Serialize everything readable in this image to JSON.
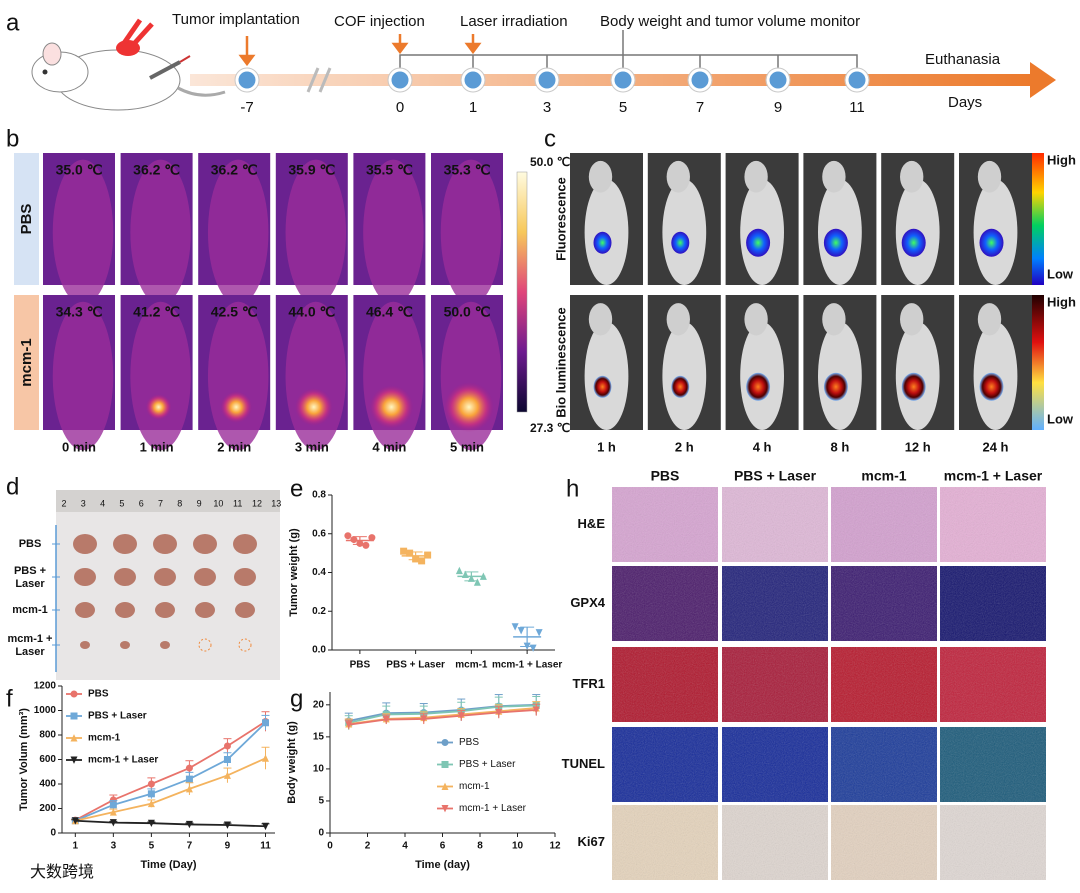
{
  "panel_a": {
    "label": "a",
    "events": [
      "Tumor implantation",
      "COF injection",
      "Laser irradiation",
      "Body weight and tumor volume monitor"
    ],
    "end": "Euthanasia",
    "axis": "Days",
    "days": [
      "-7",
      "0",
      "1",
      "3",
      "5",
      "7",
      "9",
      "11"
    ]
  },
  "panel_b": {
    "label": "b",
    "groups": [
      "PBS",
      "mcm-1"
    ],
    "temps": [
      [
        "35.0 ℃",
        "36.2 ℃",
        "36.2 ℃",
        "35.9 ℃",
        "35.5 ℃",
        "35.3 ℃"
      ],
      [
        "34.3 ℃",
        "41.2 ℃",
        "42.5 ℃",
        "44.0 ℃",
        "46.4 ℃",
        "50.0 ℃"
      ]
    ],
    "times": [
      "0 min",
      "1 min",
      "2 min",
      "3 min",
      "4 min",
      "5 min"
    ],
    "scale_max": "50.0 ℃",
    "scale_min": "27.3 ℃"
  },
  "panel_c": {
    "label": "c",
    "rows": [
      "Fluorescence",
      "Bio luminescence"
    ],
    "times": [
      "1 h",
      "2 h",
      "4 h",
      "8 h",
      "12 h",
      "24 h"
    ],
    "high": "High",
    "low": "Low"
  },
  "panel_d": {
    "label": "d",
    "rows": [
      "PBS",
      "PBS + Laser",
      "mcm-1",
      "mcm-1 + Laser"
    ],
    "ruler": [
      "2",
      "3",
      "4",
      "5",
      "6",
      "7",
      "8",
      "9",
      "10",
      "11",
      "12",
      "13"
    ]
  },
  "panel_h": {
    "label": "h",
    "columns": [
      "PBS",
      "PBS + Laser",
      "mcm-1",
      "mcm-1 + Laser"
    ],
    "rows": [
      "H&E",
      "GPX4",
      "TFR1",
      "TUNEL",
      "Ki67"
    ]
  },
  "watermark": "大数跨境",
  "chart_data": [
    {
      "type": "dot",
      "panel_label": "e",
      "ylabel": "Tumor weight (g)",
      "categories": [
        "PBS",
        "PBS + Laser",
        "mcm-1",
        "mcm-1 + Laser"
      ],
      "colors": [
        "#e8736b",
        "#f4b35e",
        "#7fc6b4",
        "#6ea8d8"
      ],
      "markers": [
        "circle",
        "square",
        "triangle",
        "triangle-down"
      ],
      "points": [
        [
          0.59,
          0.57,
          0.55,
          0.54,
          0.58
        ],
        [
          0.51,
          0.5,
          0.47,
          0.46,
          0.49
        ],
        [
          0.41,
          0.39,
          0.37,
          0.35,
          0.38
        ],
        [
          0.12,
          0.1,
          0.02,
          0.01,
          0.09
        ]
      ],
      "values": [
        0.565,
        0.486,
        0.38,
        0.068
      ],
      "errors": [
        0.02,
        0.02,
        0.023,
        0.05
      ],
      "ylim": [
        0,
        0.8
      ],
      "yticks": [
        {
          "value": 0,
          "label": "0.0"
        },
        0.2,
        0.4,
        0.6,
        0.8
      ]
    },
    {
      "type": "line",
      "panel_label": "f",
      "xlabel": "Time (Day)",
      "ylabel": "Tumor Volum (mm³)",
      "x": [
        1,
        3,
        5,
        7,
        9,
        11
      ],
      "xlim": [
        0.3,
        11.5
      ],
      "xticks": [
        1,
        3,
        5,
        7,
        9,
        11
      ],
      "ylim": [
        0,
        1200
      ],
      "yticks": [
        0,
        200,
        400,
        600,
        800,
        1000,
        1200
      ],
      "legend": "upper left",
      "series": [
        {
          "name": "PBS",
          "color": "#e8736b",
          "marker": "circle",
          "values": [
            105,
            270,
            400,
            530,
            710,
            910
          ],
          "errors": [
            15,
            40,
            50,
            60,
            60,
            80
          ]
        },
        {
          "name": "PBS + Laser",
          "color": "#6ea8d8",
          "marker": "square",
          "values": [
            100,
            230,
            320,
            440,
            600,
            900
          ],
          "errors": [
            12,
            35,
            40,
            55,
            55,
            60
          ]
        },
        {
          "name": "mcm-1",
          "color": "#f4b35e",
          "marker": "triangle",
          "values": [
            100,
            170,
            240,
            360,
            470,
            610
          ],
          "errors": [
            10,
            25,
            30,
            50,
            60,
            90
          ]
        },
        {
          "name": "mcm-1 + Laser",
          "color": "#222222",
          "marker": "triangle-down",
          "values": [
            100,
            85,
            80,
            70,
            65,
            55
          ],
          "errors": [
            8,
            10,
            10,
            12,
            15,
            20
          ]
        }
      ]
    },
    {
      "type": "line",
      "panel_label": "g",
      "xlabel": "Time (day)",
      "ylabel": "Body weight (g)",
      "x": [
        1,
        3,
        5,
        7,
        9,
        11
      ],
      "xlim": [
        0,
        12
      ],
      "xticks": [
        0,
        2,
        4,
        6,
        8,
        10,
        12
      ],
      "ylim": [
        0,
        22
      ],
      "yticks": [
        0,
        5,
        10,
        15,
        20
      ],
      "legend": "center right",
      "series": [
        {
          "name": "PBS",
          "color": "#6e9fc8",
          "marker": "circle",
          "values": [
            17.5,
            18.7,
            18.8,
            19.2,
            19.8,
            20.0
          ],
          "errors": [
            1.2,
            1.6,
            1.4,
            1.7,
            1.8,
            1.6
          ]
        },
        {
          "name": "PBS + Laser",
          "color": "#7fc6b4",
          "marker": "square",
          "values": [
            17.2,
            18.5,
            18.6,
            19.0,
            19.7,
            19.9
          ],
          "errors": [
            1.1,
            1.3,
            1.2,
            1.4,
            1.5,
            1.4
          ]
        },
        {
          "name": "mcm-1",
          "color": "#f4b35e",
          "marker": "triangle",
          "values": [
            17.0,
            17.8,
            18.0,
            18.5,
            19.0,
            19.5
          ],
          "errors": [
            0.8,
            0.8,
            0.9,
            0.9,
            1.0,
            1.0
          ]
        },
        {
          "name": "mcm-1 + Laser",
          "color": "#e8736b",
          "marker": "triangle-down",
          "values": [
            16.9,
            17.7,
            17.8,
            18.3,
            18.8,
            19.2
          ],
          "errors": [
            0.7,
            0.7,
            0.8,
            0.8,
            0.9,
            0.9
          ]
        }
      ]
    }
  ]
}
